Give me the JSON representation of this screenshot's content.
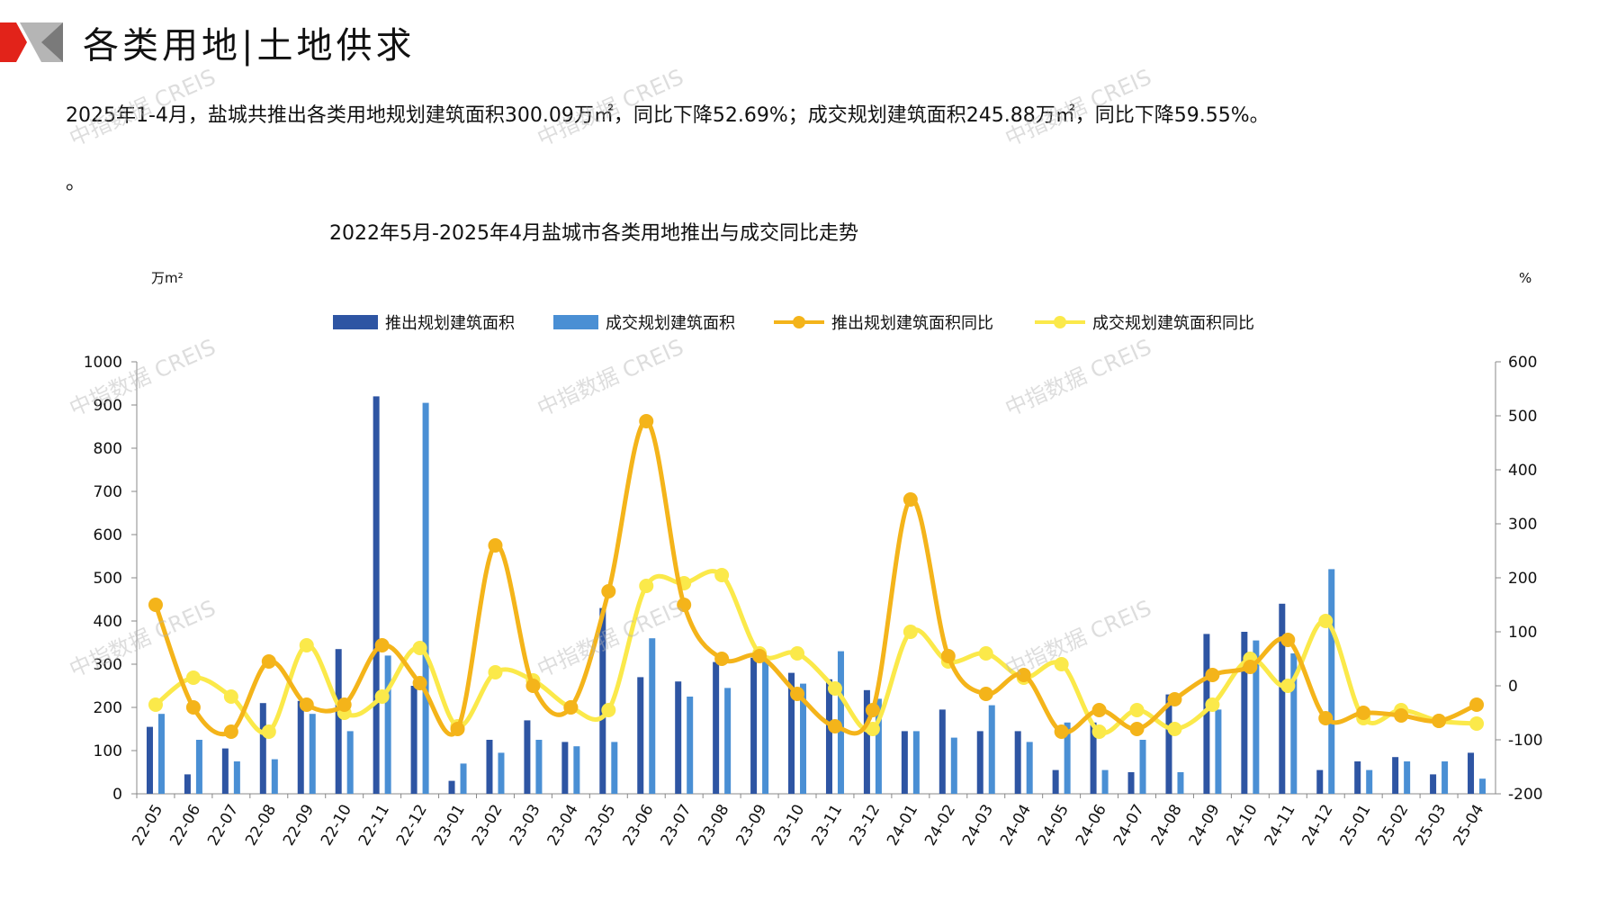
{
  "page": {
    "title": "各类用地|土地供求",
    "summary": "2025年1-4月，盐城共推出各类用地规划建筑面积300.09万㎡，同比下降52.69%；成交规划建筑面积245.88万㎡，同比下降59.55%。",
    "summary_tail": "。",
    "watermark": "中指数据 CREIS",
    "colors": {
      "corner_red": "#e2231a",
      "corner_gray": "#b5b5b5"
    }
  },
  "chart_data": {
    "type": "bar",
    "title": "2022年5月-2025年4月盐城市各类用地推出与成交同比走势",
    "y_left_unit": "万m²",
    "y_right_unit": "%",
    "ylim_left": [
      0,
      1000
    ],
    "ylim_right": [
      -200,
      600
    ],
    "yticks_left": [
      "0",
      "100",
      "200",
      "300",
      "400",
      "500",
      "600",
      "700",
      "800",
      "900",
      "1000"
    ],
    "yticks_right": [
      "-200",
      "-100",
      "0",
      "100",
      "200",
      "300",
      "400",
      "500",
      "600"
    ],
    "categories": [
      "22-05",
      "22-06",
      "22-07",
      "22-08",
      "22-09",
      "22-10",
      "22-11",
      "22-12",
      "23-01",
      "23-02",
      "23-03",
      "23-04",
      "23-05",
      "23-06",
      "23-07",
      "23-08",
      "23-09",
      "23-10",
      "23-11",
      "23-12",
      "24-01",
      "24-02",
      "24-03",
      "24-04",
      "24-05",
      "24-06",
      "24-07",
      "24-08",
      "24-09",
      "24-10",
      "24-11",
      "24-12",
      "25-01",
      "25-02",
      "25-03",
      "25-04"
    ],
    "grid": false,
    "legend_position": "top",
    "series": [
      {
        "name": "推出规划建筑面积",
        "type": "bar",
        "axis": "left",
        "color": "#2e55a3",
        "values": [
          155,
          45,
          105,
          210,
          215,
          335,
          920,
          250,
          30,
          125,
          170,
          120,
          430,
          270,
          260,
          305,
          315,
          280,
          265,
          240,
          145,
          195,
          145,
          145,
          55,
          165,
          50,
          230,
          370,
          375,
          440,
          55,
          75,
          85,
          45,
          95
        ]
      },
      {
        "name": "成交规划建筑面积",
        "type": "bar",
        "axis": "left",
        "color": "#4a8fd4",
        "values": [
          185,
          125,
          75,
          80,
          185,
          145,
          320,
          905,
          70,
          95,
          125,
          110,
          120,
          360,
          225,
          245,
          320,
          255,
          330,
          220,
          145,
          130,
          205,
          120,
          165,
          55,
          125,
          50,
          195,
          355,
          325,
          520,
          55,
          75,
          75,
          35
        ]
      },
      {
        "name": "推出规划建筑面积同比",
        "type": "line",
        "axis": "right",
        "color": "#f4b41a",
        "values": [
          150,
          -40,
          -85,
          45,
          -35,
          -35,
          75,
          5,
          -80,
          260,
          0,
          -40,
          175,
          490,
          150,
          50,
          55,
          -15,
          -75,
          -45,
          345,
          55,
          -15,
          20,
          -85,
          -45,
          -80,
          -25,
          20,
          35,
          85,
          -60,
          -50,
          -55,
          -65,
          -35
        ]
      },
      {
        "name": "成交规划建筑面积同比",
        "type": "line",
        "axis": "right",
        "color": "#fbe94a",
        "values": [
          -35,
          15,
          -20,
          -85,
          75,
          -50,
          -20,
          70,
          -75,
          25,
          10,
          -40,
          -45,
          185,
          190,
          205,
          60,
          60,
          -5,
          -80,
          100,
          45,
          60,
          15,
          40,
          -85,
          -45,
          -80,
          -35,
          50,
          0,
          120,
          -60,
          -45,
          -65,
          -70
        ]
      }
    ]
  }
}
